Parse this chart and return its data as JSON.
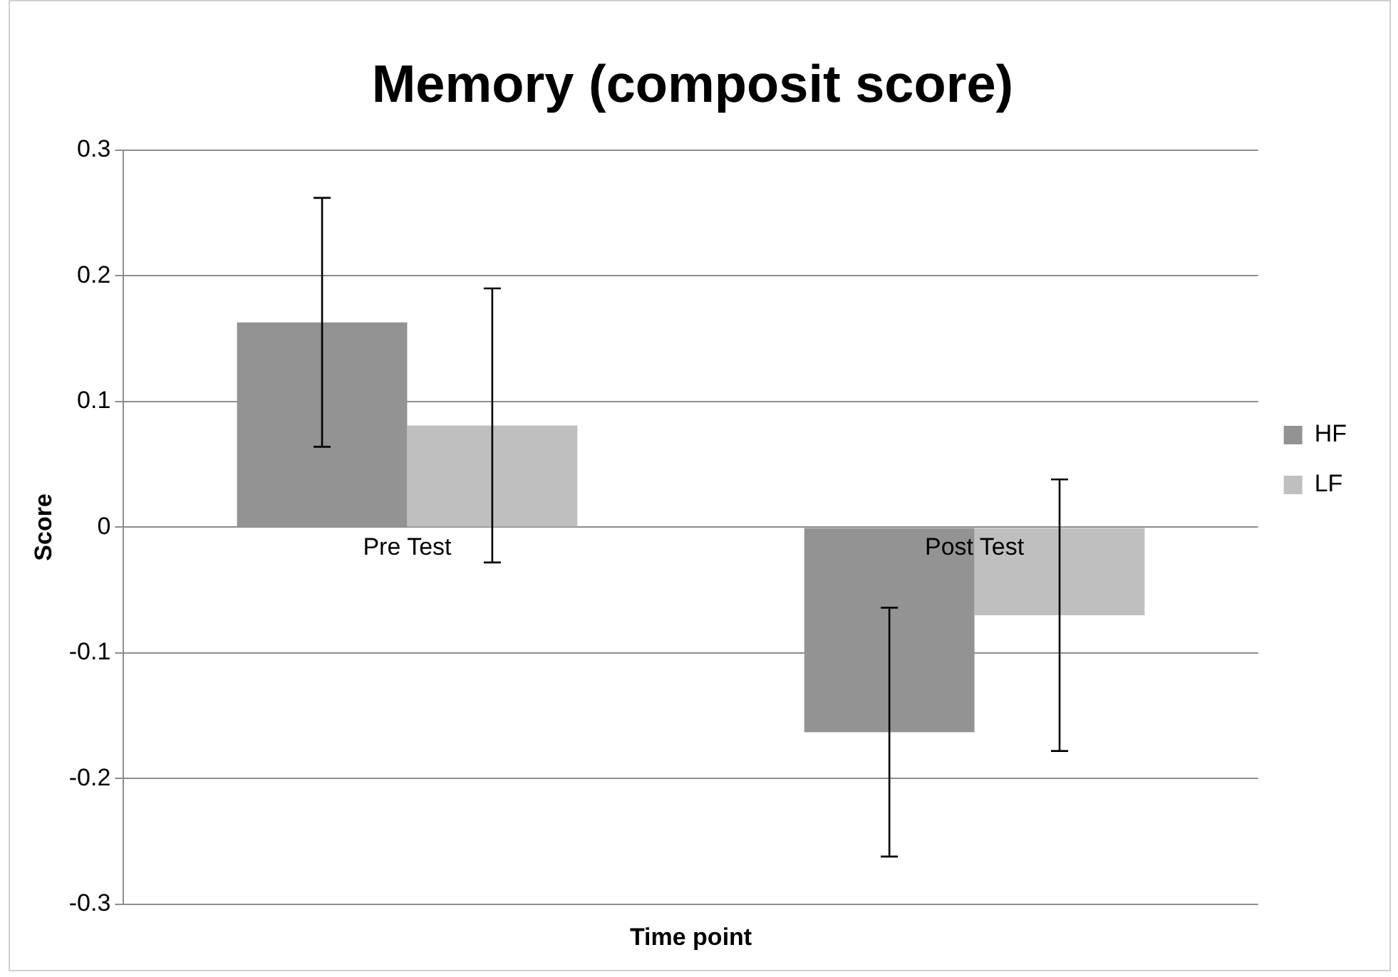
{
  "chart_data": {
    "type": "bar",
    "title": "Memory (composit score)",
    "xlabel": "Time point",
    "ylabel": "Score",
    "categories": [
      "Pre Test",
      "Post Test"
    ],
    "series": [
      {
        "name": "HF",
        "color": "#939393",
        "values": [
          0.163,
          -0.163
        ],
        "errors": [
          0.099,
          0.099
        ]
      },
      {
        "name": "LF",
        "color": "#bfbfbf",
        "values": [
          0.081,
          -0.07
        ],
        "errors": [
          0.109,
          0.108
        ]
      }
    ],
    "ylim": [
      -0.3,
      0.3
    ],
    "yticks": [
      -0.3,
      -0.2,
      -0.1,
      0,
      0.1,
      0.2,
      0.3
    ],
    "grid": "y",
    "legend": "right"
  }
}
